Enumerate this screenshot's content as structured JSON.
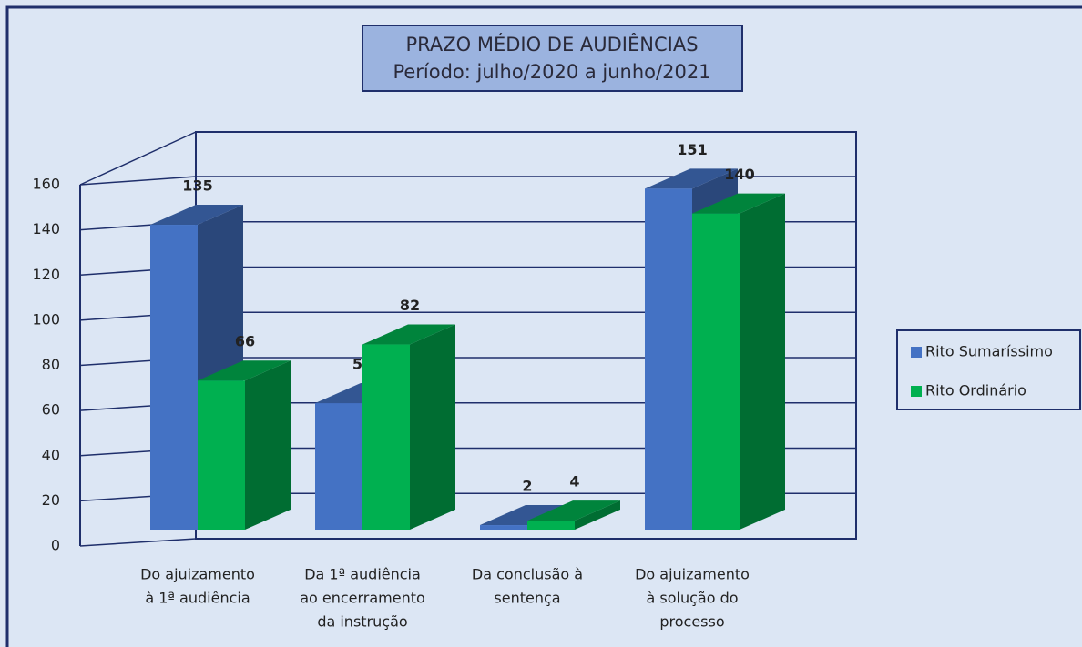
{
  "chart_data": {
    "type": "bar3d",
    "title": [
      "PRAZO MÉDIO DE AUDIÊNCIAS",
      "Período: julho/2020 a junho/2021"
    ],
    "categories": [
      [
        "Do ajuizamento",
        "à 1ª audiência"
      ],
      [
        "Da 1ª audiência",
        "ao encerramento",
        "da instrução"
      ],
      [
        "Da conclusão à",
        "sentença"
      ],
      [
        "Do ajuizamento",
        "à solução do",
        "processo"
      ]
    ],
    "series": [
      {
        "name": "Rito Sumaríssimo",
        "color": "#4472c4",
        "values": [
          135,
          56,
          2,
          151
        ]
      },
      {
        "name": "Rito Ordinário",
        "color": "#00b050",
        "values": [
          66,
          82,
          4,
          140
        ]
      }
    ],
    "ylim": [
      0,
      160
    ],
    "yticks": [
      0,
      20,
      40,
      60,
      80,
      100,
      120,
      140,
      160
    ],
    "grid": true,
    "legend": "right"
  }
}
